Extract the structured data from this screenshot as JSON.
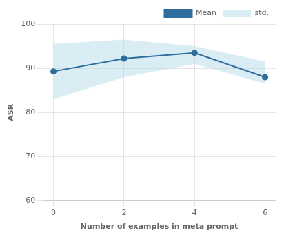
{
  "chart_data": {
    "type": "line",
    "xlabel": "Number of examples in meta prompt",
    "ylabel": "ASR",
    "x": [
      0,
      2,
      4,
      6
    ],
    "series": [
      {
        "name": "Mean",
        "type": "line",
        "color": "#2e6d9e",
        "marker": "circle",
        "values": [
          89.3,
          92.2,
          93.5,
          88.0
        ]
      },
      {
        "name": "std.",
        "type": "area",
        "color": "#add8e6",
        "upper": [
          95.5,
          96.5,
          95.0,
          91.5
        ],
        "lower": [
          83.0,
          88.0,
          91.0,
          86.5
        ]
      }
    ],
    "xlim": [
      -0.3,
      6.3
    ],
    "xticks": [
      0,
      2,
      4,
      6
    ],
    "ylim": [
      60,
      100
    ],
    "yticks": [
      60,
      70,
      80,
      90,
      100
    ],
    "grid": true,
    "legend": "upper right"
  }
}
